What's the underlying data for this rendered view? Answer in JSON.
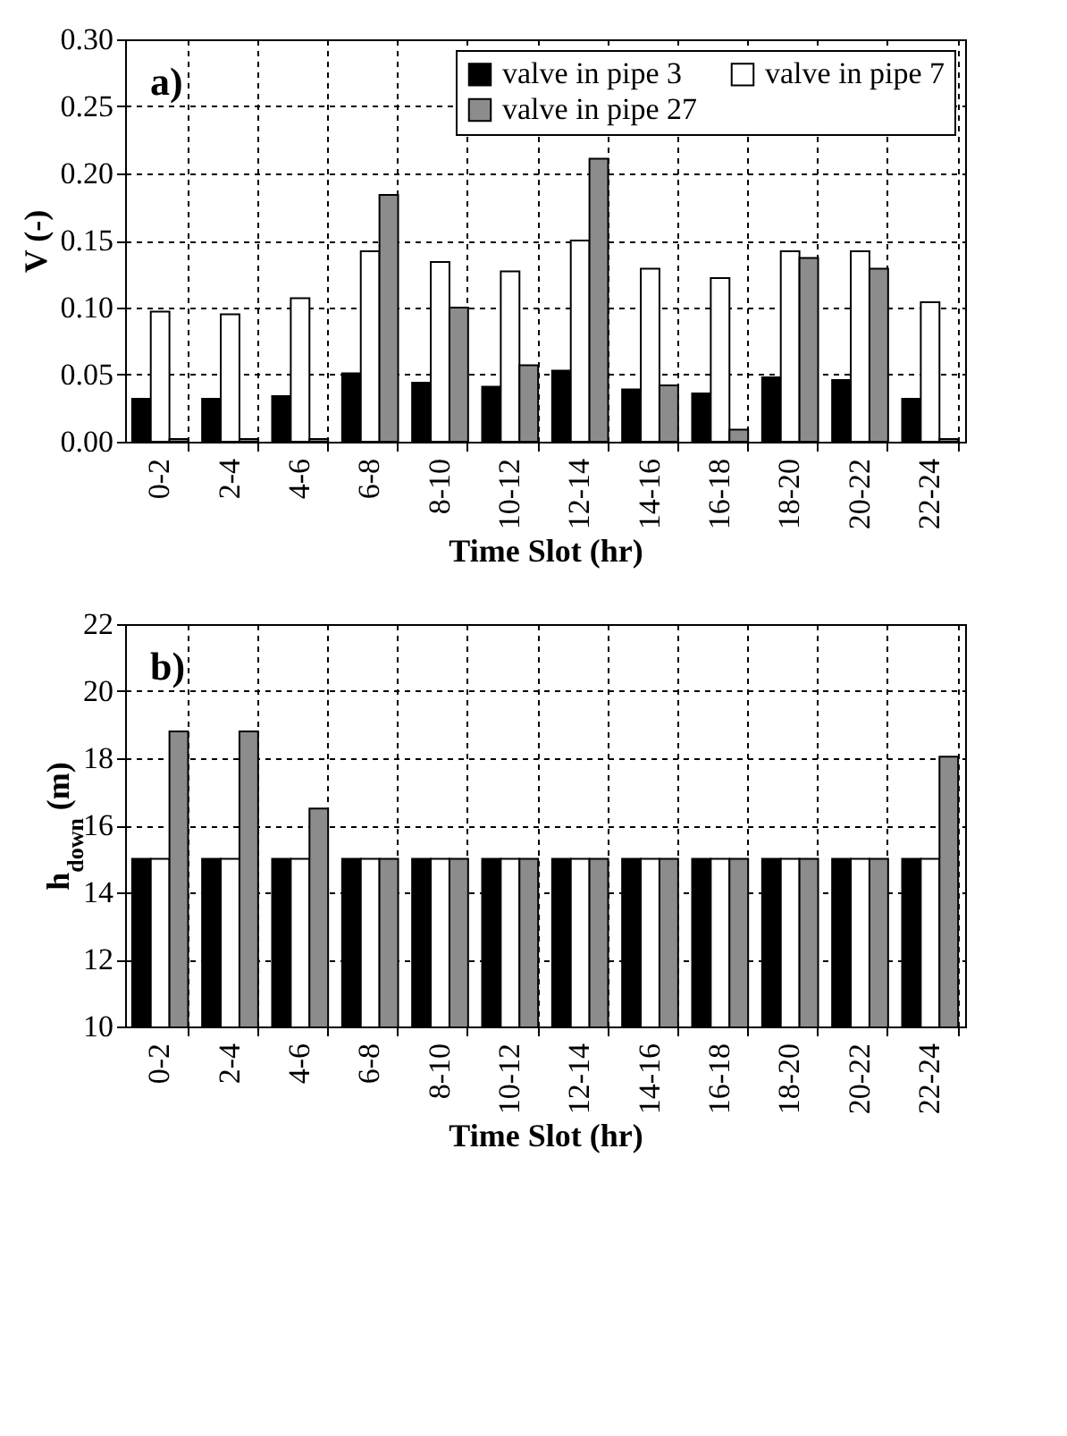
{
  "chart_data": [
    {
      "type": "bar",
      "annotations": [
        "a)"
      ],
      "xlabel": "Time Slot (hr)",
      "ylabel": "V (-)",
      "categories": [
        "0-2",
        "2-4",
        "4-6",
        "6-8",
        "8-10",
        "10-12",
        "12-14",
        "14-16",
        "16-18",
        "18-20",
        "20-22",
        "22-24"
      ],
      "series": [
        {
          "name": "valve in pipe 3",
          "color": "#000000",
          "values": [
            0.032,
            0.032,
            0.034,
            0.051,
            0.044,
            0.041,
            0.053,
            0.039,
            0.036,
            0.048,
            0.046,
            0.032
          ]
        },
        {
          "name": "valve in pipe 7",
          "color": "#ffffff",
          "values": [
            0.097,
            0.095,
            0.107,
            0.142,
            0.134,
            0.127,
            0.15,
            0.129,
            0.122,
            0.142,
            0.142,
            0.104
          ]
        },
        {
          "name": "valve in pipe 27",
          "color": "#8c8c8c",
          "values": [
            0.002,
            0.002,
            0.002,
            0.184,
            0.1,
            0.057,
            0.211,
            0.042,
            0.009,
            0.137,
            0.129,
            0.002
          ]
        }
      ],
      "ylim": [
        0,
        0.3
      ],
      "yticks": [
        {
          "value": 0,
          "label": "0.00"
        },
        {
          "value": 0.05,
          "label": "0.05"
        },
        {
          "value": 0.1,
          "label": "0.10"
        },
        {
          "value": 0.15,
          "label": "0.15"
        },
        {
          "value": 0.2,
          "label": "0.20"
        },
        {
          "value": 0.25,
          "label": "0.25"
        },
        {
          "value": 0.3,
          "label": "0.30"
        }
      ],
      "grid": true,
      "legend": "top right"
    },
    {
      "type": "bar",
      "annotations": [
        "b)"
      ],
      "xlabel": "Time Slot (hr)",
      "ylabel": "h$_{down}$ (m)",
      "categories": [
        "0-2",
        "2-4",
        "4-6",
        "6-8",
        "8-10",
        "10-12",
        "12-14",
        "14-16",
        "16-18",
        "18-20",
        "20-22",
        "22-24"
      ],
      "series": [
        {
          "name": "valve in pipe 3",
          "color": "#000000",
          "values": [
            15,
            15,
            15,
            15,
            15,
            15,
            15,
            15,
            15,
            15,
            15,
            15
          ]
        },
        {
          "name": "valve in pipe 7",
          "color": "#ffffff",
          "values": [
            15,
            15,
            15,
            15,
            15,
            15,
            15,
            15,
            15,
            15,
            15,
            15
          ]
        },
        {
          "name": "valve in pipe 27",
          "color": "#8c8c8c",
          "values": [
            18.8,
            18.8,
            16.5,
            15,
            15,
            15,
            15,
            15,
            15,
            15,
            15,
            18.05
          ]
        }
      ],
      "ylim": [
        10,
        22
      ],
      "yticks": [
        10,
        12,
        14,
        16,
        18,
        20,
        22
      ],
      "grid": true,
      "legend": "top right"
    }
  ]
}
